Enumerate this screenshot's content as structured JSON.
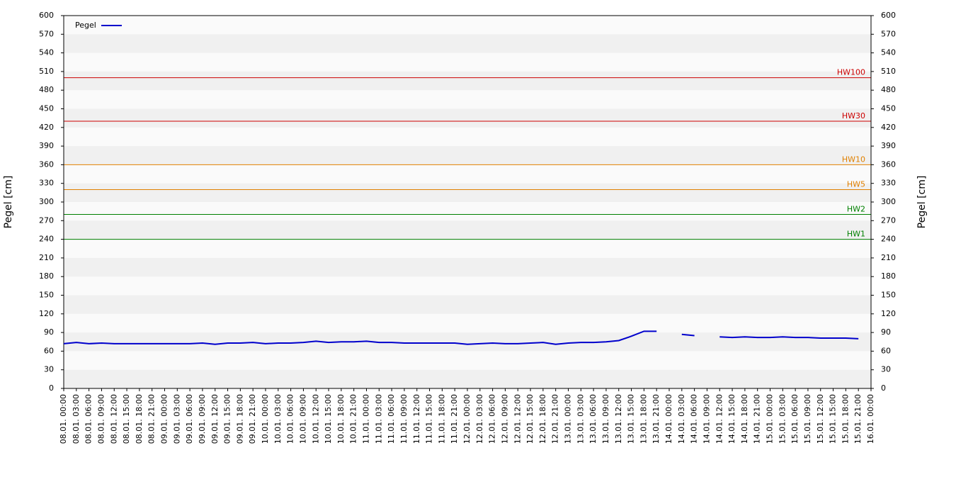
{
  "chart_data": {
    "type": "line",
    "ylabel": "Pegel [cm]",
    "y2label": "Pegel [cm]",
    "categories": [
      "08.01. 00:00",
      "08.01. 03:00",
      "08.01. 06:00",
      "08.01. 09:00",
      "08.01. 12:00",
      "08.01. 15:00",
      "08.01. 18:00",
      "08.01. 21:00",
      "09.01. 00:00",
      "09.01. 03:00",
      "09.01. 06:00",
      "09.01. 09:00",
      "09.01. 12:00",
      "09.01. 15:00",
      "09.01. 18:00",
      "09.01. 21:00",
      "10.01. 00:00",
      "10.01. 03:00",
      "10.01. 06:00",
      "10.01. 09:00",
      "10.01. 12:00",
      "10.01. 15:00",
      "10.01. 18:00",
      "10.01. 21:00",
      "11.01. 00:00",
      "11.01. 03:00",
      "11.01. 06:00",
      "11.01. 09:00",
      "11.01. 12:00",
      "11.01. 15:00",
      "11.01. 18:00",
      "11.01. 21:00",
      "12.01. 00:00",
      "12.01. 03:00",
      "12.01. 06:00",
      "12.01. 09:00",
      "12.01. 12:00",
      "12.01. 15:00",
      "12.01. 18:00",
      "12.01. 21:00",
      "13.01. 00:00",
      "13.01. 03:00",
      "13.01. 06:00",
      "13.01. 09:00",
      "13.01. 12:00",
      "13.01. 15:00",
      "13.01. 18:00",
      "13.01. 21:00",
      "14.01. 00:00",
      "14.01. 03:00",
      "14.01. 06:00",
      "14.01. 09:00",
      "14.01. 12:00",
      "14.01. 15:00",
      "14.01. 18:00",
      "14.01. 21:00",
      "15.01. 00:00",
      "15.01. 03:00",
      "15.01. 06:00",
      "15.01. 09:00",
      "15.01. 12:00",
      "15.01. 15:00",
      "15.01. 18:00",
      "15.01. 21:00",
      "16.01. 00:00"
    ],
    "series": [
      {
        "name": "Pegel",
        "color": "#0000cc",
        "values": [
          72,
          74,
          72,
          73,
          72,
          72,
          72,
          72,
          72,
          72,
          72,
          73,
          71,
          73,
          73,
          74,
          72,
          73,
          73,
          74,
          76,
          74,
          75,
          75,
          76,
          74,
          74,
          73,
          73,
          73,
          73,
          73,
          71,
          72,
          73,
          72,
          72,
          73,
          74,
          71,
          73,
          74,
          74,
          75,
          77,
          84,
          92,
          92,
          null,
          87,
          85,
          null,
          83,
          82,
          83,
          82,
          82,
          83,
          82,
          82,
          81,
          81,
          81,
          80,
          null
        ]
      }
    ],
    "reference_lines": [
      {
        "label": "HW100",
        "value": 500,
        "color": "#cc0000"
      },
      {
        "label": "HW30",
        "value": 430,
        "color": "#cc0000"
      },
      {
        "label": "HW10",
        "value": 360,
        "color": "#e08000"
      },
      {
        "label": "HW5",
        "value": 320,
        "color": "#e08000"
      },
      {
        "label": "HW2",
        "value": 280,
        "color": "#008000"
      },
      {
        "label": "HW1",
        "value": 240,
        "color": "#008000"
      }
    ],
    "ylim": [
      0,
      600
    ],
    "yticks": [
      0,
      30,
      60,
      90,
      120,
      150,
      180,
      210,
      240,
      270,
      300,
      330,
      360,
      390,
      420,
      450,
      480,
      510,
      540,
      570,
      600
    ],
    "y2lim": [
      0,
      600
    ],
    "y2ticks": [
      0,
      30,
      60,
      90,
      120,
      150,
      180,
      210,
      240,
      270,
      300,
      330,
      360,
      390,
      420,
      450,
      480,
      510,
      540,
      570,
      600
    ],
    "legend": "upper left"
  }
}
